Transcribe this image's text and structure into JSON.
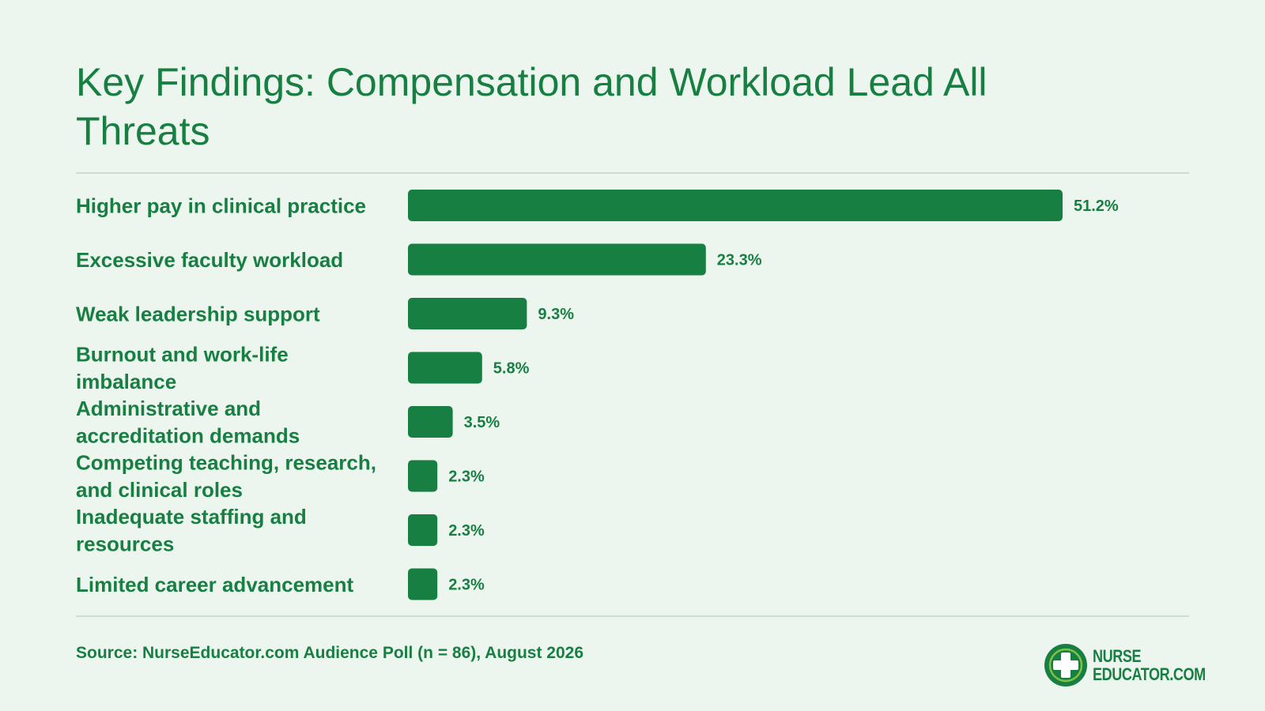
{
  "page": {
    "title": "Key Findings: Compensation and Workload Lead All Threats",
    "source": "Source: NurseEducator.com Audience Poll (n = 86), August 2026"
  },
  "brand": {
    "line1": "NURSE",
    "line2": "EDUCATOR.COM",
    "icon": "medical-cross-icon"
  },
  "colors": {
    "accent": "#177f42",
    "background": "#edf5ef",
    "rule": "#c9ddd0"
  },
  "chart_data": {
    "type": "bar",
    "orientation": "horizontal",
    "title": "Key Findings: Compensation and Workload Lead All Threats",
    "categories": [
      "Higher pay in clinical practice",
      "Excessive faculty workload",
      "Weak leadership support",
      "Burnout and work-life imbalance",
      "Administrative and accreditation demands",
      "Competing teaching, research, and clinical roles",
      "Inadequate staffing and resources",
      "Limited career advancement"
    ],
    "values": [
      51.2,
      23.3,
      9.3,
      5.8,
      3.5,
      2.3,
      2.3,
      2.3
    ],
    "value_labels": [
      "51.2%",
      "23.3%",
      "9.3%",
      "5.8%",
      "3.5%",
      "2.3%",
      "2.3%",
      "2.3%"
    ],
    "unit": "%",
    "xlim": [
      0,
      51.2
    ],
    "grid": false,
    "legend": "none",
    "bar_color": "#177f42"
  }
}
